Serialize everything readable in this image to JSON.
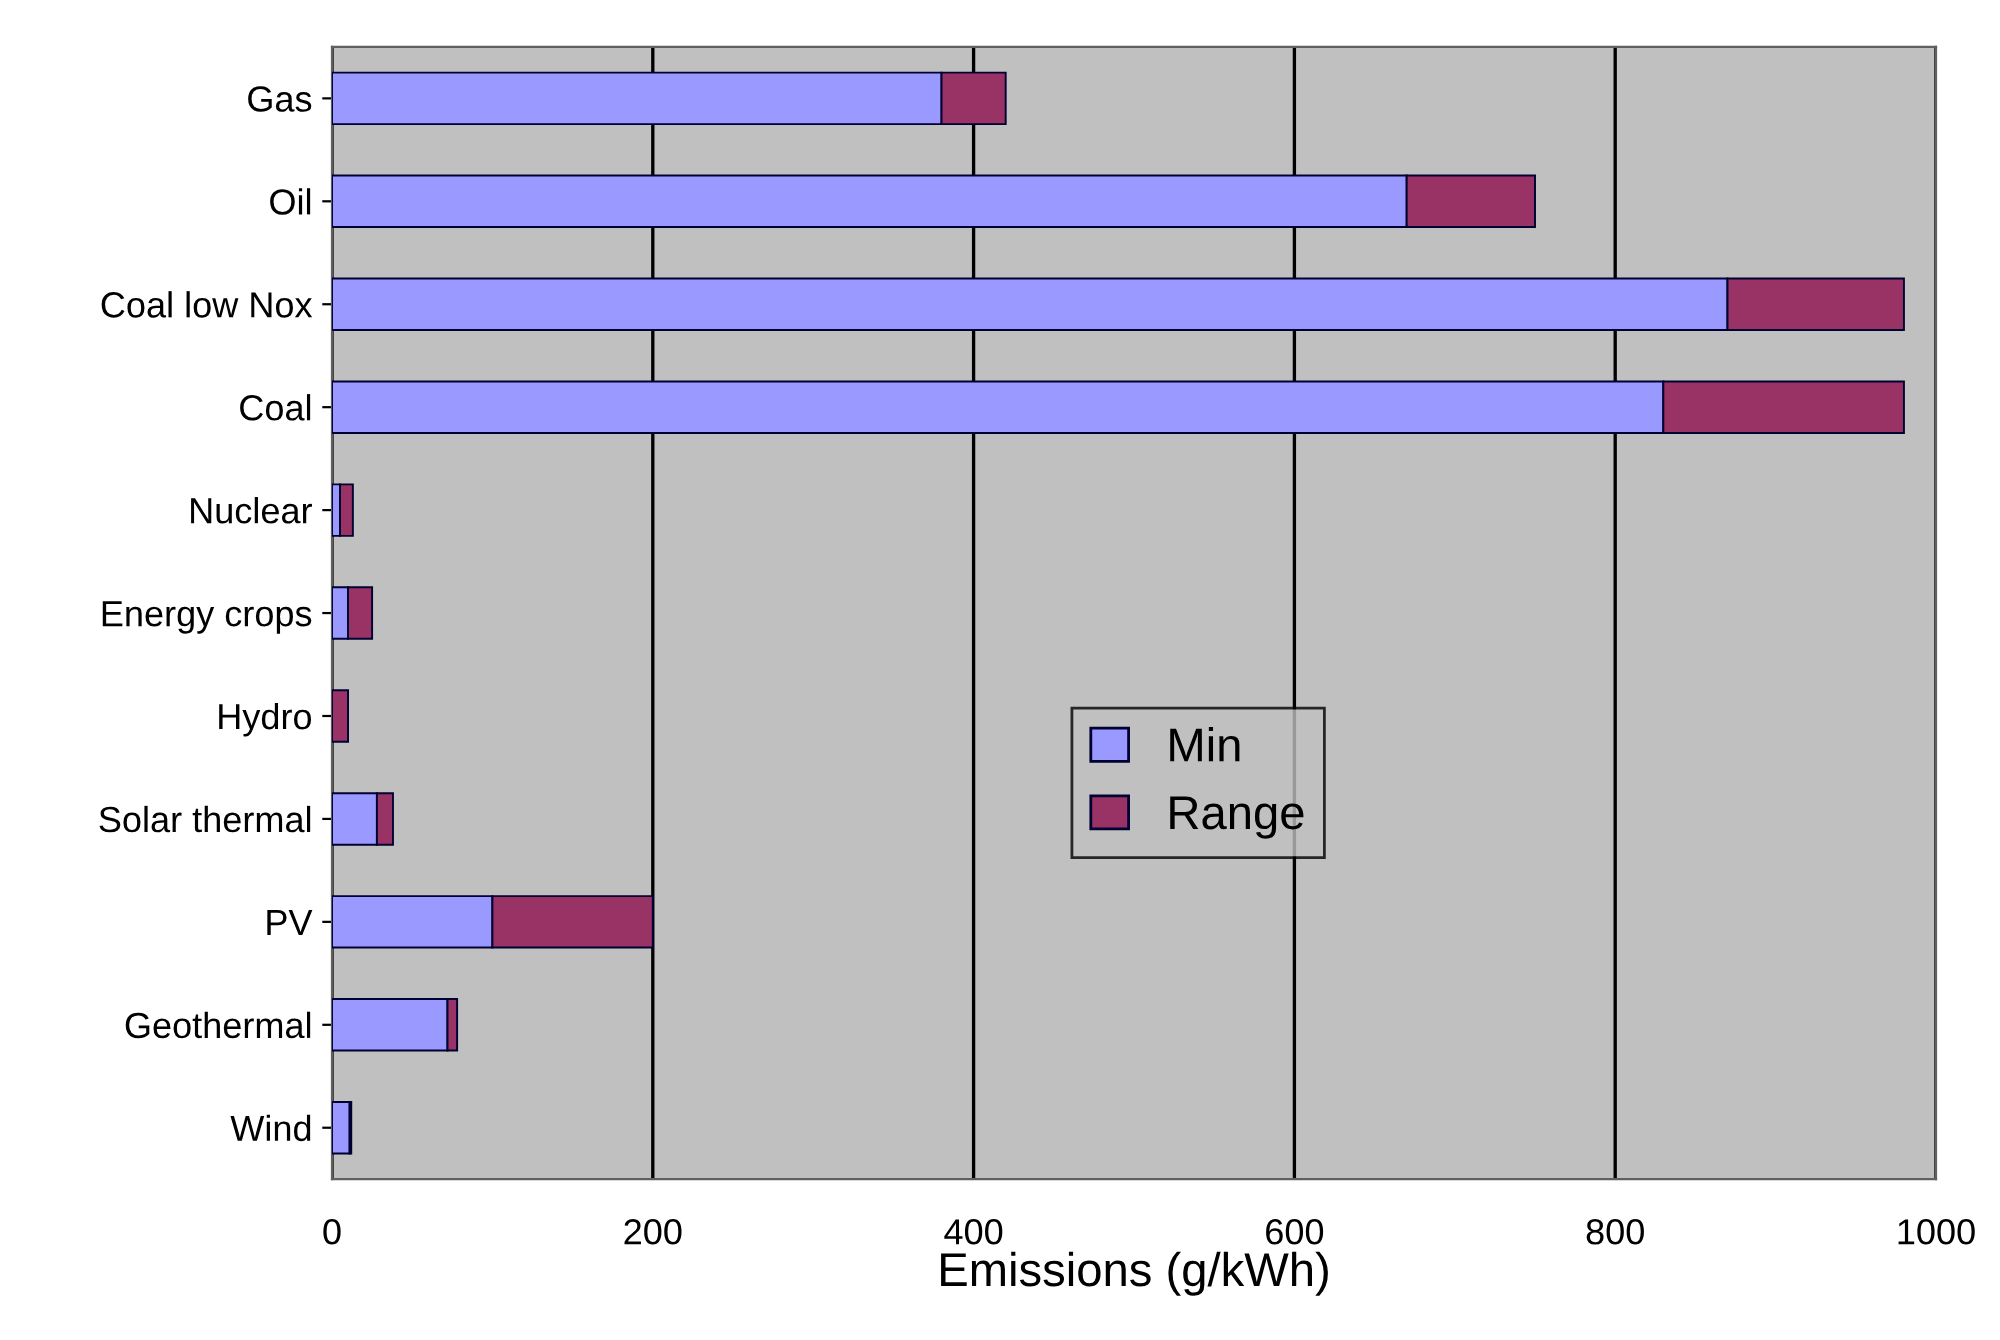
{
  "chart_data": {
    "type": "bar",
    "orientation": "horizontal",
    "stacked": true,
    "xlabel": "Emissions (g/kWh)",
    "categories": [
      "Gas",
      "Oil",
      "Coal low Nox",
      "Coal",
      "Nuclear",
      "Energy crops",
      "Hydro",
      "Solar thermal",
      "PV",
      "Geothermal",
      "Wind"
    ],
    "series": [
      {
        "name": "Min",
        "color": "#9999ff",
        "values": [
          380,
          670,
          870,
          830,
          5,
          10,
          null,
          28,
          100,
          72,
          11
        ]
      },
      {
        "name": "Range",
        "color": "#993366",
        "values": [
          40,
          80,
          110,
          150,
          8,
          15,
          10,
          10,
          100,
          6,
          1
        ]
      }
    ],
    "xlim": [
      0,
      1000
    ],
    "xticks": [
      0,
      200,
      400,
      600,
      800,
      1000
    ],
    "grid": "x",
    "legend": "center"
  }
}
